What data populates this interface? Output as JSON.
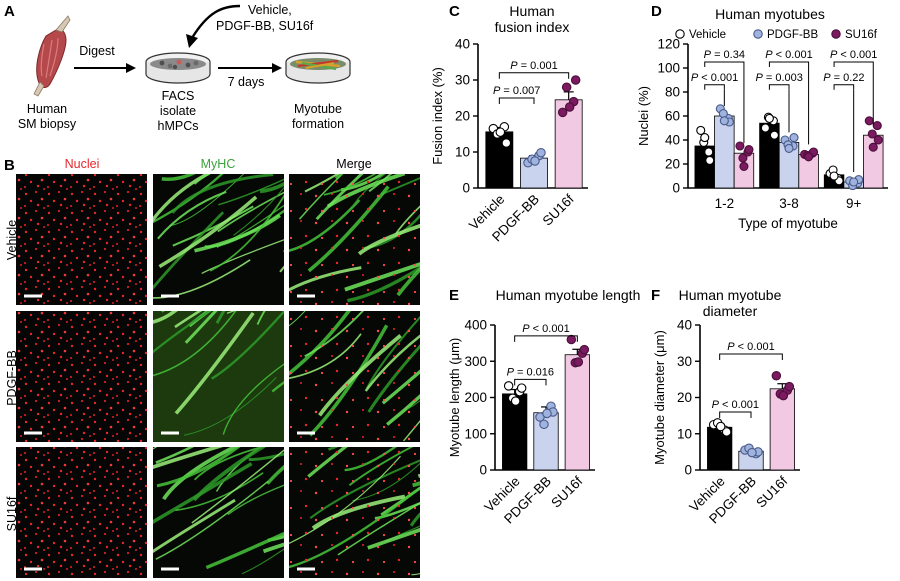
{
  "panels": {
    "A": "A",
    "B": "B",
    "C": "C",
    "D": "D",
    "E": "E",
    "F": "F"
  },
  "panel_a": {
    "source": "Human",
    "source2": "SM biopsy",
    "step1": "Digest",
    "treat1": "Vehicle,",
    "treat2": "PDGF-BB, SU16f",
    "dish1a": "FACS",
    "dish1b": "isolate",
    "dish1c": "hMPCs",
    "step2": "7 days",
    "out1": "Myotube",
    "out2": "formation"
  },
  "panel_b": {
    "columns": [
      "Nuclei",
      "MyHC",
      "Merge"
    ],
    "rows": [
      "Vehicle",
      "PDGF-BB",
      "SU16f"
    ],
    "colors": {
      "nuclei": "#e8262b",
      "myhc": "#3ca23c",
      "merge": "#000000"
    }
  },
  "colors": {
    "vehicle": "#000000",
    "pdgf": "#c9d3ee",
    "pdgf_dot": "#9fb3df",
    "su16f": "#f1c9e2",
    "su16f_dot": "#7b1a60"
  },
  "chart_data": [
    {
      "id": "C",
      "type": "bar",
      "title": "Human\nfusion  index",
      "ylabel": "Fusion index (%)",
      "ylim": [
        0,
        40
      ],
      "yticks": [
        0,
        10,
        20,
        30,
        40
      ],
      "categories": [
        "Vehicle",
        "PDGF-BB",
        "SU16f"
      ],
      "values": [
        15.6,
        8.3,
        24.5
      ],
      "errors": [
        1.2,
        0.7,
        2.2
      ],
      "points": [
        [
          16.5,
          17,
          15,
          12.5,
          15.5
        ],
        [
          7,
          9,
          8,
          9.8,
          7.5
        ],
        [
          21,
          24,
          28,
          30,
          22.5
        ]
      ],
      "annotations": [
        {
          "text": "P = 0.007",
          "from": 0,
          "to": 1,
          "y": 25
        },
        {
          "text": "P = 0.001",
          "from": 0,
          "to": 2,
          "y": 32
        }
      ]
    },
    {
      "id": "D",
      "type": "bar",
      "title": "Human myotubes",
      "ylabel": "Nuclei (%)",
      "xlabel": "Type of myotube",
      "ylim": [
        0,
        120
      ],
      "yticks": [
        0,
        20,
        40,
        60,
        80,
        100,
        120
      ],
      "categories": [
        "1-2",
        "3-8",
        "9+"
      ],
      "series": [
        {
          "name": "Vehicle",
          "values": [
            35,
            54,
            11
          ],
          "points": [
            [
              48,
              30,
              38,
              23,
              42
            ],
            [
              50,
              56,
              59,
              44,
              58
            ],
            [
              12,
              8,
              15,
              6,
              10
            ]
          ]
        },
        {
          "name": "PDGF-BB",
          "values": [
            60,
            38,
            5
          ],
          "points": [
            [
              66,
              58,
              62,
              55,
              56
            ],
            [
              40,
              35,
              36,
              42,
              33
            ],
            [
              6,
              4,
              2,
              7,
              5
            ]
          ]
        },
        {
          "name": "SU16f",
          "values": [
            29,
            28,
            44
          ],
          "points": [
            [
              35,
              30,
              25,
              32,
              18
            ],
            [
              28,
              29,
              27,
              30,
              26
            ],
            [
              56,
              52,
              45,
              40,
              34
            ]
          ]
        }
      ],
      "annotations": [
        {
          "text": "P = 0.34",
          "group": 0,
          "from": 0,
          "to": 2,
          "y": 105
        },
        {
          "text": "P < 0.001",
          "group": 0,
          "from": 0,
          "to": 1,
          "y": 86
        },
        {
          "text": "P < 0.001",
          "group": 1,
          "from": 0,
          "to": 2,
          "y": 105
        },
        {
          "text": "P = 0.003",
          "group": 1,
          "from": 0,
          "to": 1,
          "y": 86
        },
        {
          "text": "P < 0.001",
          "group": 2,
          "from": 0,
          "to": 2,
          "y": 105
        },
        {
          "text": "P = 0.22",
          "group": 2,
          "from": 0,
          "to": 1,
          "y": 86
        }
      ]
    },
    {
      "id": "E",
      "type": "bar",
      "title": "Human myotube length",
      "ylabel": "Myotube length (μm)",
      "ylim": [
        0,
        400
      ],
      "yticks": [
        0,
        100,
        200,
        300,
        400
      ],
      "categories": [
        "Vehicle",
        "PDGF-BB",
        "SU16f"
      ],
      "values": [
        210,
        158,
        318
      ],
      "errors": [
        12,
        16,
        15
      ],
      "points": [
        [
          232,
          216,
          198,
          226,
          190
        ],
        [
          146,
          176,
          126,
          160,
          156
        ],
        [
          360,
          322,
          296,
          332,
          298
        ]
      ],
      "annotations": [
        {
          "text": "P = 0.016",
          "from": 0,
          "to": 1,
          "y": 250
        },
        {
          "text": "P < 0.001",
          "from": 0,
          "to": 2,
          "y": 370
        }
      ]
    },
    {
      "id": "F",
      "type": "bar",
      "title": "Human myotube\ndiameter",
      "ylabel": "Myotube diameter (μm)",
      "ylim": [
        0,
        40
      ],
      "yticks": [
        0,
        10,
        20,
        30,
        40
      ],
      "categories": [
        "Vehicle",
        "PDGF-BB",
        "SU16f"
      ],
      "values": [
        11.8,
        5.2,
        22.4
      ],
      "errors": [
        0.8,
        0.5,
        1.4
      ],
      "points": [
        [
          12.5,
          11,
          13,
          10.5,
          12
        ],
        [
          5.5,
          4.5,
          6,
          5,
          4.8
        ],
        [
          26,
          22,
          21,
          23,
          20.5
        ]
      ],
      "annotations": [
        {
          "text": "P < 0.001",
          "from": 0,
          "to": 1,
          "y": 16
        },
        {
          "text": "P < 0.001",
          "from": 0,
          "to": 2,
          "y": 32
        }
      ]
    }
  ]
}
